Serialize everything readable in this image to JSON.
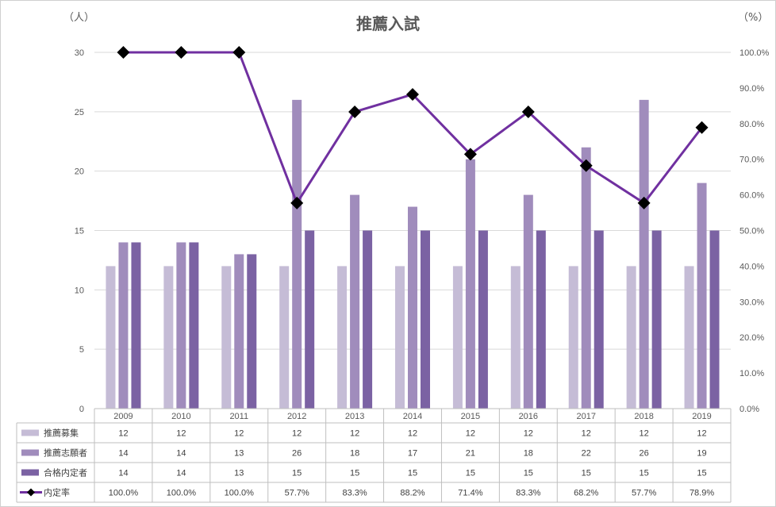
{
  "chart_data": {
    "type": "bar",
    "title": "推薦入試",
    "left_unit": "（人）",
    "right_unit": "（%）",
    "categories": [
      "2009",
      "2010",
      "2011",
      "2012",
      "2013",
      "2014",
      "2015",
      "2016",
      "2017",
      "2018",
      "2019"
    ],
    "y_left": {
      "min": 0,
      "max": 30,
      "ticks": [
        0,
        5,
        10,
        15,
        20,
        25,
        30
      ]
    },
    "y_right": {
      "min": 0,
      "max": 100,
      "ticks": [
        "0.0%",
        "10.0%",
        "20.0%",
        "30.0%",
        "40.0%",
        "50.0%",
        "60.0%",
        "70.0%",
        "80.0%",
        "90.0%",
        "100.0%"
      ]
    },
    "gridlines": true,
    "data_table": true,
    "series": [
      {
        "name": "推薦募集",
        "kind": "bar",
        "color": "#c5bcd6",
        "values": [
          12,
          12,
          12,
          12,
          12,
          12,
          12,
          12,
          12,
          12,
          12
        ]
      },
      {
        "name": "推薦志願者",
        "kind": "bar",
        "color": "#a08cbc",
        "values": [
          14,
          14,
          13,
          26,
          18,
          17,
          21,
          18,
          22,
          26,
          19
        ]
      },
      {
        "name": "合格内定者",
        "kind": "bar",
        "color": "#7b62a3",
        "values": [
          14,
          14,
          13,
          15,
          15,
          15,
          15,
          15,
          15,
          15,
          15
        ]
      },
      {
        "name": "内定率",
        "kind": "line",
        "axis": "right",
        "color": "#7030a0",
        "marker_color": "#000000",
        "values": [
          100.0,
          100.0,
          100.0,
          57.7,
          83.3,
          88.2,
          71.4,
          83.3,
          68.2,
          57.7,
          78.9
        ],
        "labels": [
          "100.0%",
          "100.0%",
          "100.0%",
          "57.7%",
          "83.3%",
          "88.2%",
          "71.4%",
          "83.3%",
          "68.2%",
          "57.7%",
          "78.9%"
        ]
      }
    ]
  }
}
